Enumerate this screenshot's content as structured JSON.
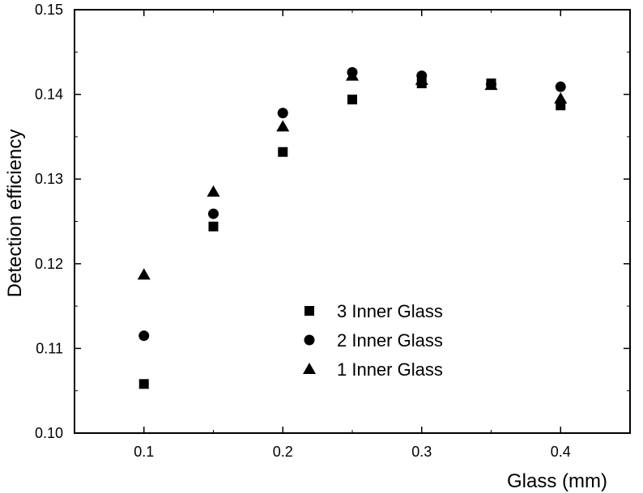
{
  "chart_data": {
    "type": "scatter",
    "xlabel": "Glass (mm)",
    "ylabel": "Detection efficiency",
    "xlim": [
      0.05,
      0.45
    ],
    "ylim": [
      0.1,
      0.15
    ],
    "x_ticks": [
      0.1,
      0.2,
      0.3,
      0.4
    ],
    "x_tick_labels": [
      "0.1",
      "0.2",
      "0.3",
      "0.4"
    ],
    "y_ticks": [
      0.1,
      0.11,
      0.12,
      0.13,
      0.14,
      0.15
    ],
    "y_tick_labels": [
      "0.10",
      "0.11",
      "0.12",
      "0.13",
      "0.14",
      "0.15"
    ],
    "grid": false,
    "legend_position": "center",
    "series": [
      {
        "name": "3 Inner Glass",
        "marker": "square",
        "x": [
          0.1,
          0.15,
          0.2,
          0.25,
          0.3,
          0.35,
          0.4
        ],
        "y": [
          0.1058,
          0.1244,
          0.1332,
          0.1394,
          0.1413,
          0.1413,
          0.1387
        ]
      },
      {
        "name": "2 Inner Glass",
        "marker": "circle",
        "x": [
          0.1,
          0.15,
          0.2,
          0.25,
          0.3,
          0.35,
          0.4
        ],
        "y": [
          0.1115,
          0.1259,
          0.1378,
          0.1426,
          0.1422,
          0.1412,
          0.1409
        ]
      },
      {
        "name": "1 Inner Glass",
        "marker": "triangle",
        "x": [
          0.1,
          0.15,
          0.2,
          0.25,
          0.3,
          0.35,
          0.4
        ],
        "y": [
          0.1187,
          0.1285,
          0.1362,
          0.1422,
          0.1417,
          0.1411,
          0.1395
        ]
      }
    ]
  }
}
